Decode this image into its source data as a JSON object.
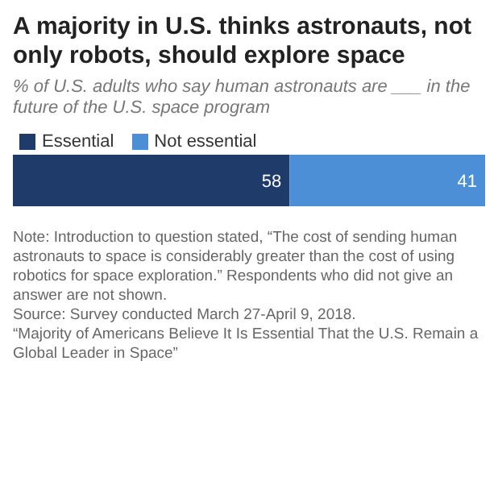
{
  "chart_data": {
    "type": "bar",
    "orientation": "horizontal",
    "stacked": true,
    "title": "A majority in U.S. thinks astronauts, not only robots, should explore space",
    "subtitle": "% of U.S. adults who say human astronauts are ___ in the future of the U.S. space program",
    "categories": [
      null
    ],
    "series": [
      {
        "name": "Essential",
        "color": "#1f3b6a",
        "values": [
          58
        ]
      },
      {
        "name": "Not essential",
        "color": "#4d8fd6",
        "values": [
          41
        ]
      }
    ],
    "data_labels": true,
    "legend": "top",
    "grid": false,
    "annotations": [
      "Note: Introduction to question stated, “The cost of sending human astronauts to space is considerably greater than the cost of using robotics for space exploration.” Respondents who did not give an answer are not shown.",
      "Source: Survey conducted March 27-April 9, 2018.",
      "“Majority of Americans Believe It Is Essential That the U.S. Remain a Global Leader in Space”"
    ]
  }
}
